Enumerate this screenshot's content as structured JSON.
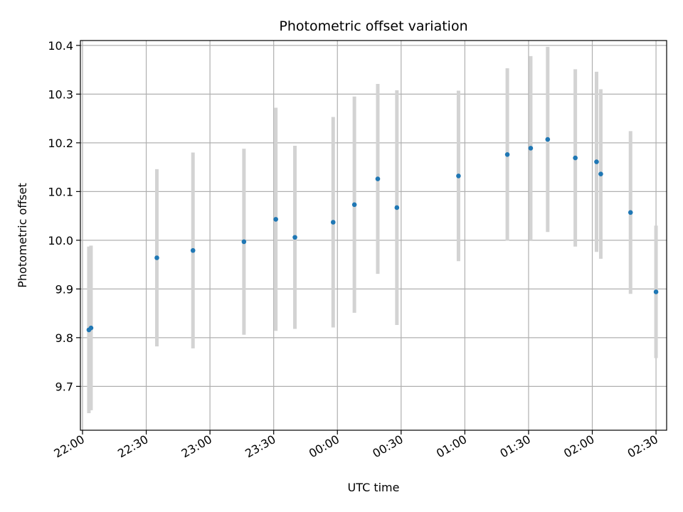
{
  "chart_data": {
    "type": "scatter",
    "title": "Photometric offset variation",
    "xlabel": "UTC time",
    "ylabel": "Photometric offset",
    "grid": true,
    "x_ticks": [
      "22:00",
      "22:30",
      "23:00",
      "23:30",
      "00:00",
      "00:30",
      "01:00",
      "01:30",
      "02:00",
      "02:30"
    ],
    "y_ticks": [
      "9.7",
      "9.8",
      "9.9",
      "10.0",
      "10.1",
      "10.2",
      "10.3",
      "10.4"
    ],
    "xlim": [
      "21:59",
      "02:35"
    ],
    "ylim": [
      9.61,
      10.41
    ],
    "point_color": "#1f77b4",
    "errorbar_color": "#d3d3d3",
    "points": [
      {
        "x": "22:03",
        "y": 9.816,
        "err": 0.171
      },
      {
        "x": "22:04",
        "y": 9.82,
        "err": 0.169
      },
      {
        "x": "22:35",
        "y": 9.964,
        "err": 0.182
      },
      {
        "x": "22:52",
        "y": 9.979,
        "err": 0.201
      },
      {
        "x": "23:16",
        "y": 9.997,
        "err": 0.191
      },
      {
        "x": "23:31",
        "y": 10.043,
        "err": 0.229
      },
      {
        "x": "23:40",
        "y": 10.006,
        "err": 0.188
      },
      {
        "x": "23:58",
        "y": 10.037,
        "err": 0.216
      },
      {
        "x": "00:08",
        "y": 10.073,
        "err": 0.222
      },
      {
        "x": "00:19",
        "y": 10.126,
        "err": 0.195
      },
      {
        "x": "00:28",
        "y": 10.067,
        "err": 0.241
      },
      {
        "x": "00:57",
        "y": 10.132,
        "err": 0.175
      },
      {
        "x": "01:20",
        "y": 10.176,
        "err": 0.177
      },
      {
        "x": "01:31",
        "y": 10.189,
        "err": 0.189
      },
      {
        "x": "01:39",
        "y": 10.207,
        "err": 0.19
      },
      {
        "x": "01:52",
        "y": 10.169,
        "err": 0.182
      },
      {
        "x": "02:02",
        "y": 10.161,
        "err": 0.185
      },
      {
        "x": "02:04",
        "y": 10.136,
        "err": 0.174
      },
      {
        "x": "02:18",
        "y": 10.057,
        "err": 0.167
      },
      {
        "x": "02:30",
        "y": 9.894,
        "err": 0.136
      }
    ]
  }
}
